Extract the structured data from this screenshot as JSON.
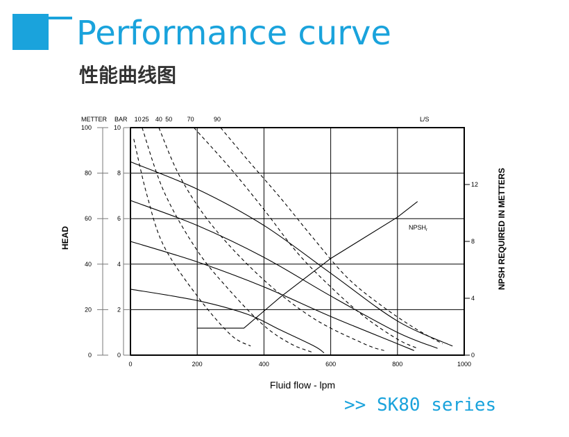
{
  "header": {
    "title": "Performance curve",
    "subtitle": "性能曲线图",
    "accent_color": "#1aa3dc"
  },
  "footer": {
    "series_label": ">>  SK80  series"
  },
  "chart_data": {
    "type": "line",
    "grid": true,
    "xlabel": "Fluid flow - lpm",
    "xlim": [
      0,
      1000
    ],
    "x_ticks": [
      "0",
      "200",
      "400",
      "600",
      "800",
      "1000"
    ],
    "top_axis": {
      "left_label": "METTER",
      "bar_label": "BAR",
      "ticks": [
        {
          "label": "10",
          "x": 22
        },
        {
          "label": "25",
          "x": 45
        },
        {
          "label": "40",
          "x": 85
        },
        {
          "label": "50",
          "x": 115
        },
        {
          "label": "70",
          "x": 180
        },
        {
          "label": "90",
          "x": 260
        }
      ],
      "right_label": "L/S"
    },
    "left_axis": {
      "ylabel": "HEAD",
      "ylim": [
        0,
        100
      ],
      "ticks": [
        "0",
        "20",
        "40",
        "60",
        "80",
        "100"
      ]
    },
    "inner_axis": {
      "ylim": [
        0,
        10
      ],
      "ticks": [
        "0",
        "2",
        "4",
        "6",
        "8",
        "10"
      ]
    },
    "right_axis": {
      "ylabel": "NPSH REQUIRED IN METTERS",
      "ylim": [
        0,
        16
      ],
      "ticks": [
        "0",
        "4",
        "8",
        "12"
      ]
    },
    "series": [
      {
        "style": "solid",
        "points": [
          [
            0,
            85
          ],
          [
            200,
            73
          ],
          [
            400,
            57
          ],
          [
            600,
            36
          ],
          [
            800,
            15
          ],
          [
            965,
            4
          ]
        ]
      },
      {
        "style": "solid",
        "points": [
          [
            0,
            68
          ],
          [
            200,
            57
          ],
          [
            400,
            43
          ],
          [
            600,
            26
          ],
          [
            800,
            10
          ],
          [
            920,
            3
          ]
        ]
      },
      {
        "style": "solid",
        "points": [
          [
            0,
            50
          ],
          [
            200,
            41
          ],
          [
            400,
            30
          ],
          [
            600,
            17
          ],
          [
            800,
            5
          ],
          [
            850,
            2
          ]
        ]
      },
      {
        "style": "solid",
        "points": [
          [
            0,
            29
          ],
          [
            200,
            24
          ],
          [
            350,
            18
          ],
          [
            450,
            11
          ],
          [
            550,
            4
          ],
          [
            580,
            1
          ]
        ]
      },
      {
        "style": "dashed",
        "points": [
          [
            10,
            95
          ],
          [
            50,
            70
          ],
          [
            100,
            48
          ],
          [
            200,
            26
          ],
          [
            300,
            9
          ],
          [
            360,
            4
          ]
        ]
      },
      {
        "style": "dashed",
        "points": [
          [
            35,
            100
          ],
          [
            100,
            72
          ],
          [
            200,
            46
          ],
          [
            300,
            28
          ],
          [
            400,
            13
          ],
          [
            480,
            5
          ],
          [
            550,
            1
          ]
        ]
      },
      {
        "style": "dashed",
        "points": [
          [
            85,
            100
          ],
          [
            150,
            78
          ],
          [
            250,
            56
          ],
          [
            400,
            33
          ],
          [
            550,
            16
          ],
          [
            700,
            5
          ],
          [
            760,
            2
          ]
        ]
      },
      {
        "style": "dashed",
        "points": [
          [
            190,
            100
          ],
          [
            300,
            82
          ],
          [
            400,
            64
          ],
          [
            500,
            45
          ],
          [
            600,
            30
          ],
          [
            700,
            17
          ],
          [
            800,
            7
          ],
          [
            860,
            3
          ]
        ]
      },
      {
        "style": "dashed",
        "points": [
          [
            270,
            100
          ],
          [
            350,
            86
          ],
          [
            450,
            69
          ],
          [
            550,
            51
          ],
          [
            650,
            34
          ],
          [
            750,
            22
          ],
          [
            850,
            12
          ],
          [
            935,
            5
          ]
        ]
      },
      {
        "name": "NPSHr",
        "style": "solid",
        "axis": "right",
        "points": [
          [
            200,
            1.9
          ],
          [
            340,
            1.9
          ],
          [
            450,
            4.1
          ],
          [
            600,
            6.8
          ],
          [
            800,
            9.7
          ],
          [
            860,
            10.8
          ]
        ]
      }
    ],
    "annotations": [
      {
        "text": "NPSH",
        "subscript": "r"
      }
    ]
  }
}
